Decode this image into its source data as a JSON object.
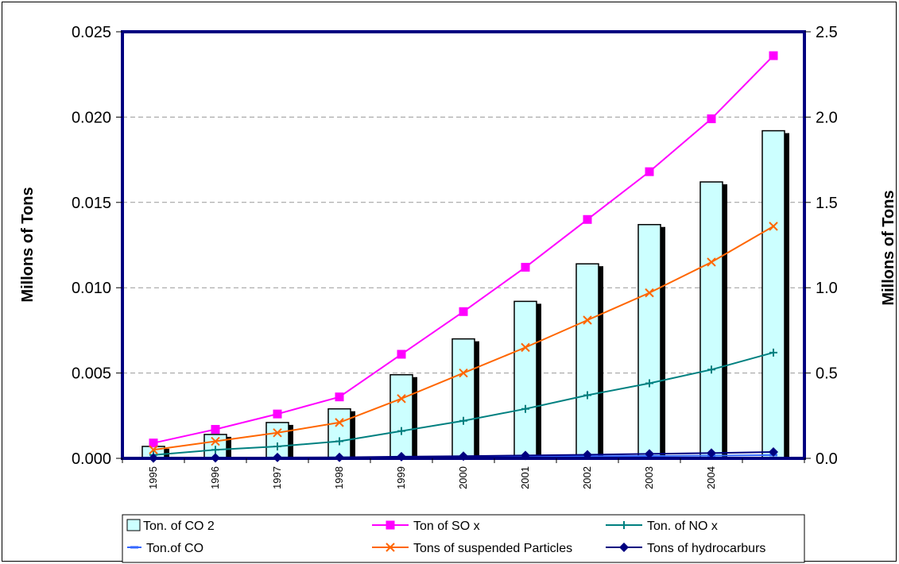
{
  "chart_data": {
    "type": "bar",
    "title": "",
    "categories": [
      "1995",
      "1996",
      "1997",
      "1998",
      "1999",
      "2000",
      "2001",
      "2002",
      "2003",
      "2004",
      ""
    ],
    "ylabel_left": "Millons of Tons",
    "ylabel_right": "Millons of Tons",
    "ylim_left": [
      0,
      0.025
    ],
    "ylim_right": [
      0,
      2.5
    ],
    "yticks_left": [
      "0.000",
      "0.005",
      "0.010",
      "0.015",
      "0.020",
      "0.025"
    ],
    "yticks_right": [
      "0.0",
      "0.5",
      "1.0",
      "1.5",
      "2.0",
      "2.5"
    ],
    "grid": true,
    "legend_position": "bottom",
    "bar_series": {
      "name": "Ton. of CO 2",
      "axis": "right",
      "color": "#ccffff",
      "values": [
        0.07,
        0.14,
        0.21,
        0.29,
        0.49,
        0.7,
        0.92,
        1.14,
        1.37,
        1.62,
        1.92
      ]
    },
    "series": [
      {
        "name": "Ton of SO x",
        "axis": "left",
        "color": "#ff00ff",
        "marker": "square",
        "values": [
          0.0009,
          0.0017,
          0.0026,
          0.0036,
          0.0061,
          0.0086,
          0.0112,
          0.014,
          0.0168,
          0.0199,
          0.0236
        ]
      },
      {
        "name": "Ton. of NO x",
        "axis": "left",
        "color": "#008080",
        "marker": "plus",
        "values": [
          0.0002,
          0.0005,
          0.0007,
          0.001,
          0.0016,
          0.0022,
          0.0029,
          0.0037,
          0.0044,
          0.0052,
          0.0062
        ]
      },
      {
        "name": "Ton.of CO",
        "axis": "left",
        "color": "#3366ff",
        "marker": "dash",
        "values": [
          1e-05,
          2e-05,
          3e-05,
          4e-05,
          6e-05,
          8e-05,
          0.0001,
          0.00012,
          0.00014,
          0.00016,
          0.00019
        ]
      },
      {
        "name": "Tons of suspended Particles",
        "axis": "left",
        "color": "#ff6600",
        "marker": "x",
        "values": [
          0.0005,
          0.001,
          0.0015,
          0.0021,
          0.0035,
          0.005,
          0.0065,
          0.0081,
          0.0097,
          0.0115,
          0.0136
        ]
      },
      {
        "name": "Tons of hydrocarburs",
        "axis": "left",
        "color": "#000080",
        "marker": "diamond",
        "values": [
          2e-05,
          3e-05,
          5e-05,
          6e-05,
          0.0001,
          0.00013,
          0.00017,
          0.00021,
          0.00026,
          0.00031,
          0.00037
        ]
      }
    ]
  }
}
